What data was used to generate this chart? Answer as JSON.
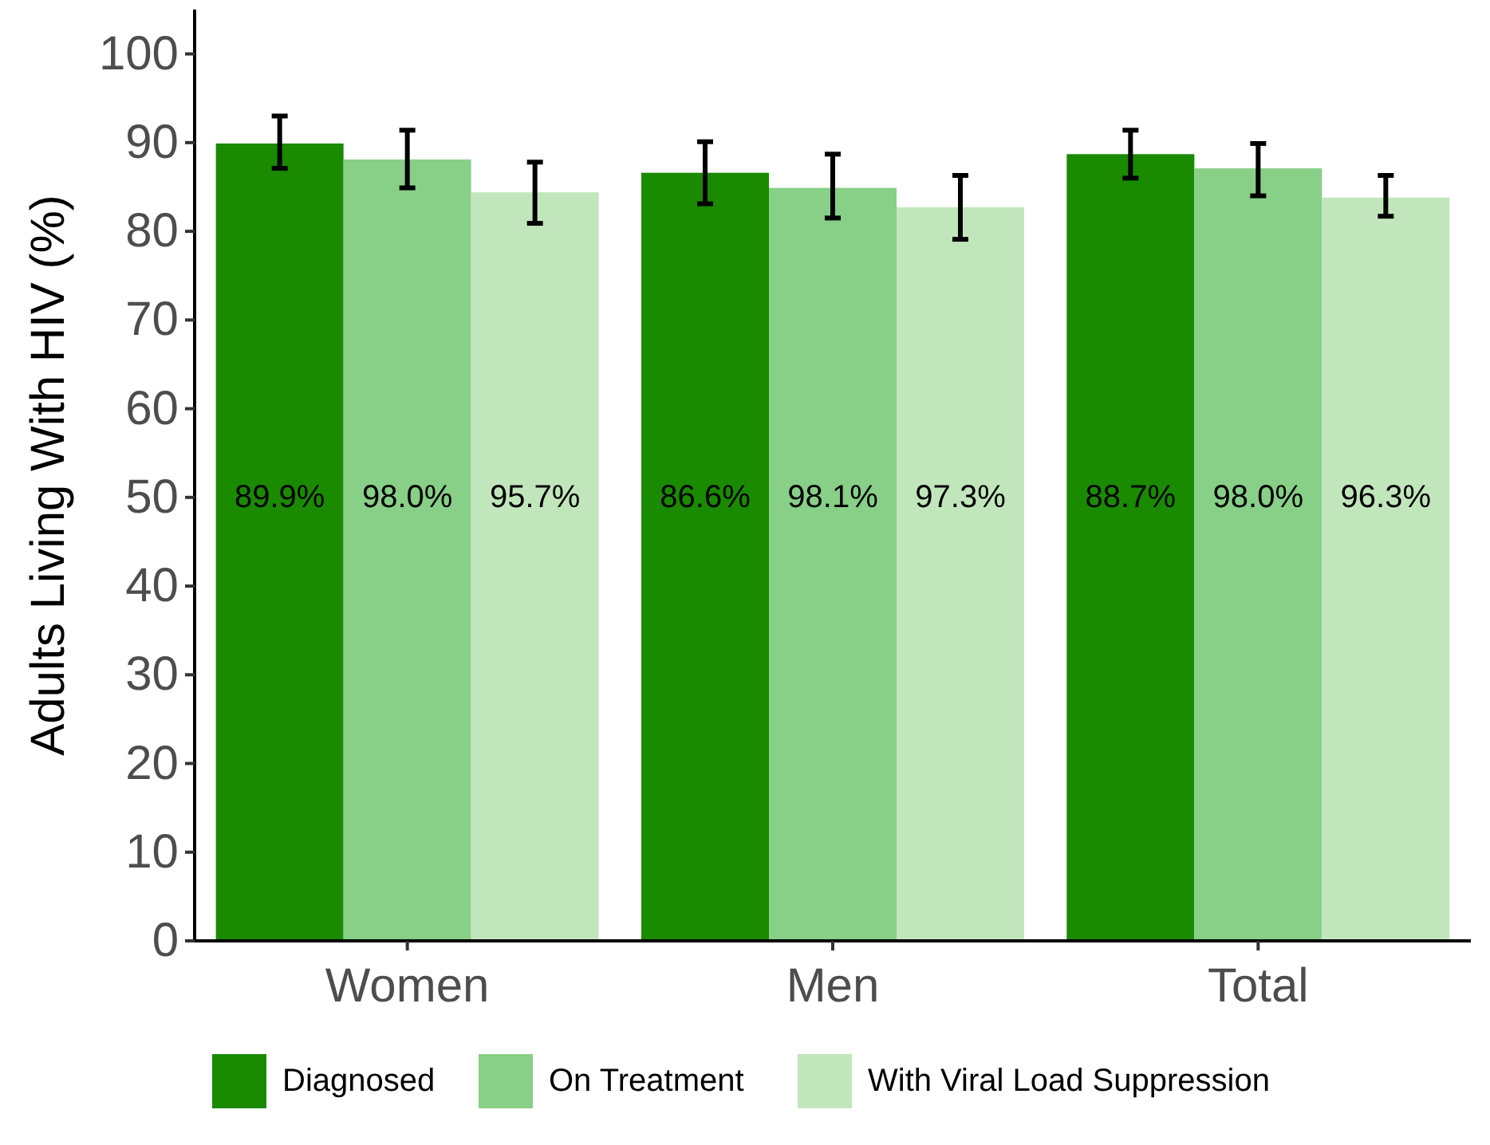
{
  "chart_data": {
    "type": "bar",
    "ylabel": "Adults Living With HIV (%)",
    "categories": [
      "Women",
      "Men",
      "Total"
    ],
    "series": [
      {
        "name": "Diagnosed",
        "color": "#1a8a00",
        "values": [
          89.9,
          86.6,
          88.7
        ],
        "errors": [
          [
            87.1,
            93.0
          ],
          [
            83.1,
            90.1
          ],
          [
            86.0,
            91.4
          ]
        ]
      },
      {
        "name": "On Treatment",
        "color": "#88cf88",
        "values": [
          88.1,
          84.9,
          87.1
        ],
        "errors": [
          [
            84.9,
            91.4
          ],
          [
            81.5,
            88.7
          ],
          [
            84.0,
            89.9
          ]
        ]
      },
      {
        "name": "With Viral Load Suppression",
        "color": "#c2e6bc",
        "values": [
          84.4,
          82.7,
          83.8
        ],
        "errors": [
          [
            80.9,
            87.8
          ],
          [
            79.1,
            86.3
          ],
          [
            81.7,
            86.3
          ]
        ]
      }
    ],
    "annotations": [
      "89.9%",
      "98.0%",
      "95.7%",
      "86.6%",
      "98.1%",
      "97.3%",
      "88.7%",
      "98.0%",
      "96.3%"
    ],
    "ylim": [
      0,
      105
    ],
    "yticks": [
      0,
      10,
      20,
      30,
      40,
      50,
      60,
      70,
      80,
      90,
      100
    ],
    "grid": false,
    "legend": "bottom"
  }
}
